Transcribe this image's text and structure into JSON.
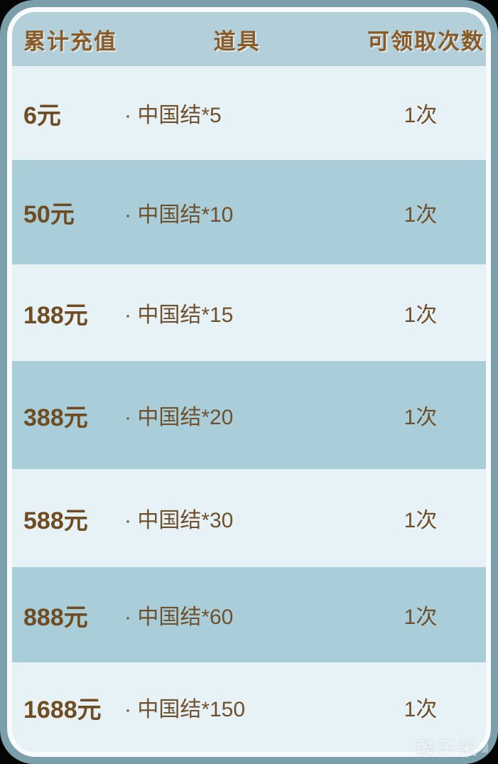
{
  "header": {
    "col_recharge": "累计充值",
    "col_item": "道具",
    "col_claims": "可领取次数"
  },
  "rows": [
    {
      "recharge": "6元",
      "item": "· 中国结*5",
      "claims": "1次"
    },
    {
      "recharge": "50元",
      "item": "· 中国结*10",
      "claims": "1次"
    },
    {
      "recharge": "188元",
      "item": "· 中国结*15",
      "claims": "1次"
    },
    {
      "recharge": "388元",
      "item": "· 中国结*20",
      "claims": "1次"
    },
    {
      "recharge": "588元",
      "item": "· 中国结*30",
      "claims": "1次"
    },
    {
      "recharge": "888元",
      "item": "· 中国结*60",
      "claims": "1次"
    },
    {
      "recharge": "1688元",
      "item": "· 中国结*150",
      "claims": "1次"
    }
  ],
  "watermark": {
    "label": "酷乐米"
  },
  "colors": {
    "background": "#050505",
    "frame": "#7ba0ab",
    "card_border": "#f7fbfc",
    "header_bg": "#b2cfda",
    "row_light": "#e7f2f7",
    "row_medium": "#a9ced9",
    "header_text": "#8a5b26",
    "cell_text": "#6f4e28"
  }
}
